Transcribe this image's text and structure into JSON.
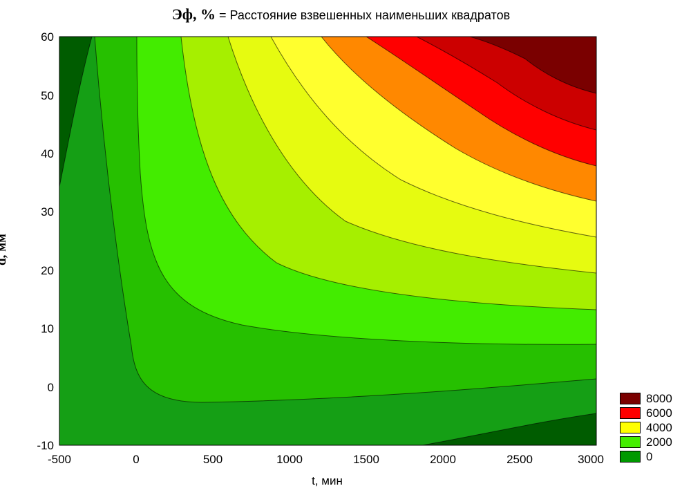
{
  "chart_data": {
    "type": "contour",
    "title_bold": "Эф, %",
    "title_rest": " = Расстояние взвешенных наименьших квадратов",
    "xlabel": "t, мин",
    "ylabel": "d, мм",
    "xlim": [
      -500,
      3000
    ],
    "ylim": [
      -10,
      60
    ],
    "xticks": [
      "-500",
      "0",
      "500",
      "1000",
      "1500",
      "2000",
      "2500",
      "3000"
    ],
    "yticks": [
      "60",
      "50",
      "40",
      "30",
      "20",
      "10",
      "0",
      "-10"
    ],
    "legend": [
      {
        "label": "8000",
        "color": "#7a0000"
      },
      {
        "label": "6000",
        "color": "#ff0000"
      },
      {
        "label": "4000",
        "color": "#ffff00"
      },
      {
        "label": "2000",
        "color": "#44ee00"
      },
      {
        "label": "0",
        "color": "#009900"
      }
    ],
    "colors": [
      "#005c00",
      "#159f15",
      "#26c000",
      "#43ec00",
      "#a6ef00",
      "#e6fb10",
      "#ffff2e",
      "#ff8800",
      "#ff0000",
      "#cc0000",
      "#7a0000"
    ],
    "grid": false,
    "legend_position": "bottom-right"
  }
}
